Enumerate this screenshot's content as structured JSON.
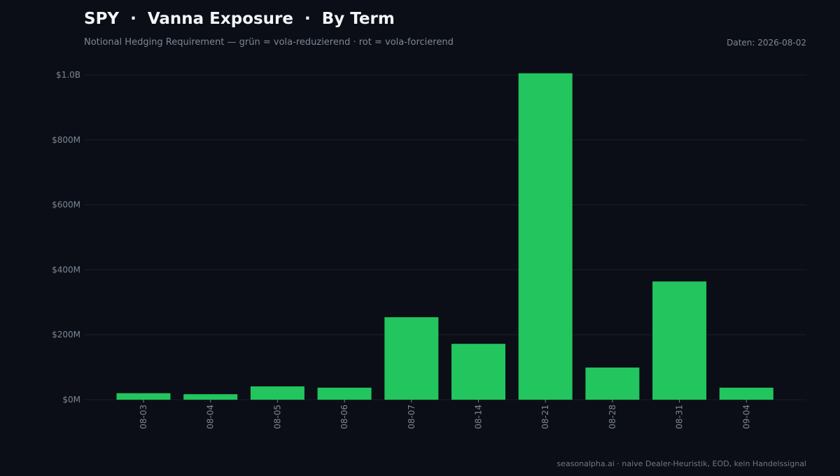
{
  "header": {
    "title": "SPY  ·  Vanna Exposure  ·  By Term",
    "subtitle": "Notional Hedging Requirement — grün = vola-reduzierend · rot = vola-forcierend",
    "date_note": "Daten: 2026-08-02"
  },
  "footer": {
    "note": "seasonalpha.ai · naive Dealer-Heuristik, EOD, kein Handelssignal"
  },
  "colors": {
    "background": "#0b0e16",
    "positive": "#22c55e",
    "negative": "#ef4444",
    "grid": "#1a1f2b",
    "tick_text": "#7d8796"
  },
  "chart_data": {
    "type": "bar",
    "title": "SPY  ·  Vanna Exposure  ·  By Term",
    "xlabel": "",
    "ylabel": "",
    "categories": [
      "08-03",
      "08-04",
      "08-05",
      "08-06",
      "08-07",
      "08-14",
      "08-21",
      "08-28",
      "08-31",
      "09-04"
    ],
    "values": [
      20,
      17,
      41,
      37,
      254,
      172,
      1005,
      99,
      364,
      37
    ],
    "unit": "$M",
    "ylim": [
      0,
      1000
    ],
    "yticks": [
      {
        "value": 0,
        "label": "$0M"
      },
      {
        "value": 200,
        "label": "$200M"
      },
      {
        "value": 400,
        "label": "$400M"
      },
      {
        "value": 600,
        "label": "$600M"
      },
      {
        "value": 800,
        "label": "$800M"
      },
      {
        "value": 1000,
        "label": "$1.0B"
      }
    ],
    "grid": true,
    "legend": "none"
  }
}
